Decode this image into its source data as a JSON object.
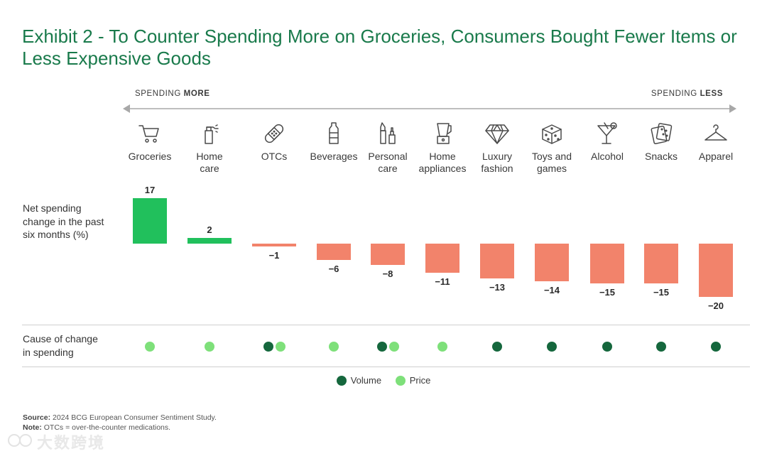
{
  "title": "Exhibit 2 - To Counter Spending More on Groceries, Consumers Bought Fewer Items or Less Expensive Goods",
  "direction": {
    "left_prefix": "SPENDING ",
    "left_emphasis": "MORE",
    "right_prefix": "SPENDING ",
    "right_emphasis": "LESS"
  },
  "row_labels": {
    "spending": "Net spending\nchange in the past\nsix months (%)",
    "cause": "Cause of change\nin spending"
  },
  "colors": {
    "positive_bar": "#21c05c",
    "negative_bar": "#f2836b",
    "volume": "#15673d",
    "price": "#7ee07a",
    "title": "#197a4b"
  },
  "chart_data": {
    "type": "bar",
    "title": "Net spending change in the past six months (%)",
    "categories": [
      "Groceries",
      "Home\ncare",
      "OTCs",
      "Beverages",
      "Personal\ncare",
      "Home\nappliances",
      "Luxury\nfashion",
      "Toys and\ngames",
      "Alcohol",
      "Snacks",
      "Apparel"
    ],
    "icons": [
      "shopping-cart-icon",
      "spray-bottle-icon",
      "bandage-icon",
      "water-bottle-icon",
      "cosmetics-icon",
      "blender-icon",
      "diamond-icon",
      "dice-icon",
      "cocktail-glass-icon",
      "cracker-icon",
      "clothes-hanger-icon"
    ],
    "values": [
      17,
      2,
      -1,
      -6,
      -8,
      -11,
      -13,
      -14,
      -15,
      -15,
      -20
    ],
    "value_labels": [
      "17",
      "2",
      "−1",
      "−6",
      "−8",
      "−11",
      "−13",
      "−14",
      "−15",
      "−15",
      "−20"
    ],
    "causes": [
      [
        "Price"
      ],
      [
        "Price"
      ],
      [
        "Volume",
        "Price"
      ],
      [
        "Price"
      ],
      [
        "Volume",
        "Price"
      ],
      [
        "Price"
      ],
      [
        "Volume"
      ],
      [
        "Volume"
      ],
      [
        "Volume"
      ],
      [
        "Volume"
      ],
      [
        "Volume"
      ]
    ],
    "ylim": [
      -20,
      17
    ],
    "legend": [
      {
        "name": "Volume",
        "color": "#15673d"
      },
      {
        "name": "Price",
        "color": "#7ee07a"
      }
    ]
  },
  "source": {
    "source_label": "Source:",
    "source_text": " 2024 BCG European Consumer Sentiment Study.",
    "note_label": "Note:",
    "note_text": " OTCs = over-the-counter medications."
  },
  "watermark": "大数跨境"
}
